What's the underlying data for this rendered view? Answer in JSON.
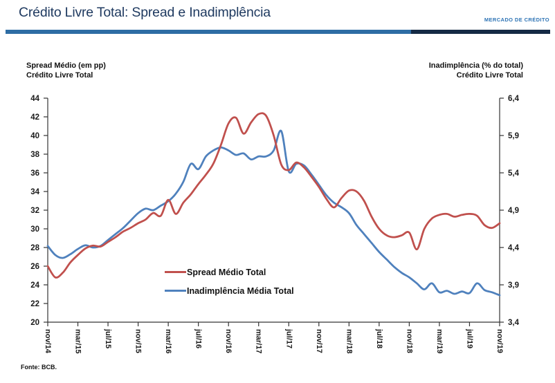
{
  "header": {
    "title": "Crédito Livre Total: Spread e Inadimplência",
    "corner_label": "MERCADO DE CRÉDITO"
  },
  "axis_titles": {
    "left_line1": "Spread Médio (em pp)",
    "left_line2": "Crédito Livre Total",
    "right_line1": "Inadimplência (% do total)",
    "right_line2": "Crédito Livre Total"
  },
  "footer": {
    "source": "Fonte: BCB."
  },
  "colors": {
    "spread_line": "#C0504D",
    "inadimplencia_line": "#4F81BD",
    "title_text": "#1F3A60",
    "corner_text": "#2E74B5",
    "rule_left": "#2E6DA4",
    "rule_right": "#152A45",
    "axis": "#333333",
    "tick_text": "#1a1a1a"
  },
  "chart_data": {
    "type": "line",
    "title": "Crédito Livre Total: Spread e Inadimplência",
    "x": [
      "nov/14",
      "dez/14",
      "jan/15",
      "fev/15",
      "mar/15",
      "abr/15",
      "mai/15",
      "jun/15",
      "jul/15",
      "ago/15",
      "set/15",
      "out/15",
      "nov/15",
      "dez/15",
      "jan/16",
      "fev/16",
      "mar/16",
      "abr/16",
      "mai/16",
      "jun/16",
      "jul/16",
      "ago/16",
      "set/16",
      "out/16",
      "nov/16",
      "dez/16",
      "jan/17",
      "fev/17",
      "mar/17",
      "abr/17",
      "mai/17",
      "jun/17",
      "jul/17",
      "ago/17",
      "set/17",
      "out/17",
      "nov/17",
      "dez/17",
      "jan/18",
      "fev/18",
      "mar/18",
      "abr/18",
      "mai/18",
      "jun/18",
      "jul/18",
      "ago/18",
      "set/18",
      "out/18",
      "nov/18",
      "dez/18",
      "jan/19",
      "fev/19",
      "mar/19",
      "abr/19",
      "mai/19",
      "jun/19",
      "jul/19",
      "ago/19",
      "set/19",
      "out/19",
      "nov/19"
    ],
    "x_tick_shown_every": 4,
    "x_tick_labels": [
      "nov/14",
      "mar/15",
      "jul/15",
      "nov/15",
      "mar/16",
      "jul/16",
      "nov/16",
      "mar/17",
      "jul/17",
      "nov/17",
      "mar/18",
      "jul/18",
      "nov/18",
      "mar/19",
      "jul/19",
      "nov/19"
    ],
    "series": [
      {
        "name": "Spread Médio Total",
        "axis": "left",
        "unit": "pp",
        "color": "#C0504D",
        "values": [
          26.0,
          24.8,
          25.3,
          26.4,
          27.2,
          27.9,
          28.2,
          28.1,
          28.6,
          29.1,
          29.7,
          30.1,
          30.6,
          31.0,
          31.7,
          31.4,
          33.1,
          31.6,
          32.8,
          33.7,
          34.8,
          35.8,
          37.0,
          39.0,
          41.3,
          41.9,
          40.2,
          41.4,
          42.3,
          42.1,
          40.0,
          36.9,
          36.3,
          37.1,
          36.6,
          35.6,
          34.5,
          33.2,
          32.3,
          33.3,
          34.1,
          34.0,
          33.0,
          31.3,
          30.0,
          29.3,
          29.1,
          29.3,
          29.6,
          27.8,
          30.0,
          31.1,
          31.5,
          31.6,
          31.3,
          31.5,
          31.6,
          31.4,
          30.4,
          30.1,
          30.6
        ]
      },
      {
        "name": "Inadimplência Média Total",
        "axis": "right",
        "unit": "% do total",
        "color": "#4F81BD",
        "values": [
          4.42,
          4.3,
          4.26,
          4.31,
          4.38,
          4.43,
          4.4,
          4.42,
          4.5,
          4.58,
          4.66,
          4.76,
          4.86,
          4.92,
          4.9,
          4.96,
          5.02,
          5.12,
          5.28,
          5.52,
          5.45,
          5.62,
          5.7,
          5.74,
          5.7,
          5.64,
          5.66,
          5.58,
          5.62,
          5.62,
          5.7,
          5.96,
          5.42,
          5.52,
          5.5,
          5.38,
          5.24,
          5.1,
          5.0,
          4.94,
          4.86,
          4.7,
          4.58,
          4.46,
          4.34,
          4.24,
          4.14,
          4.06,
          4.0,
          3.92,
          3.84,
          3.92,
          3.8,
          3.82,
          3.78,
          3.81,
          3.79,
          3.92,
          3.83,
          3.8,
          3.76
        ]
      }
    ],
    "left_axis": {
      "min": 20,
      "max": 44,
      "step": 2,
      "ticks": [
        "20",
        "22",
        "24",
        "26",
        "28",
        "30",
        "32",
        "34",
        "36",
        "38",
        "40",
        "42",
        "44"
      ]
    },
    "right_axis": {
      "min": 3.4,
      "max": 6.4,
      "step": 0.5,
      "ticks": [
        "3,4",
        "3,9",
        "4,4",
        "4,9",
        "5,4",
        "5,9",
        "6,4"
      ]
    },
    "grid": false,
    "legend_position": "inside-bottom-center",
    "legend": [
      "Spread Médio Total",
      "Inadimplência Média Total"
    ]
  }
}
